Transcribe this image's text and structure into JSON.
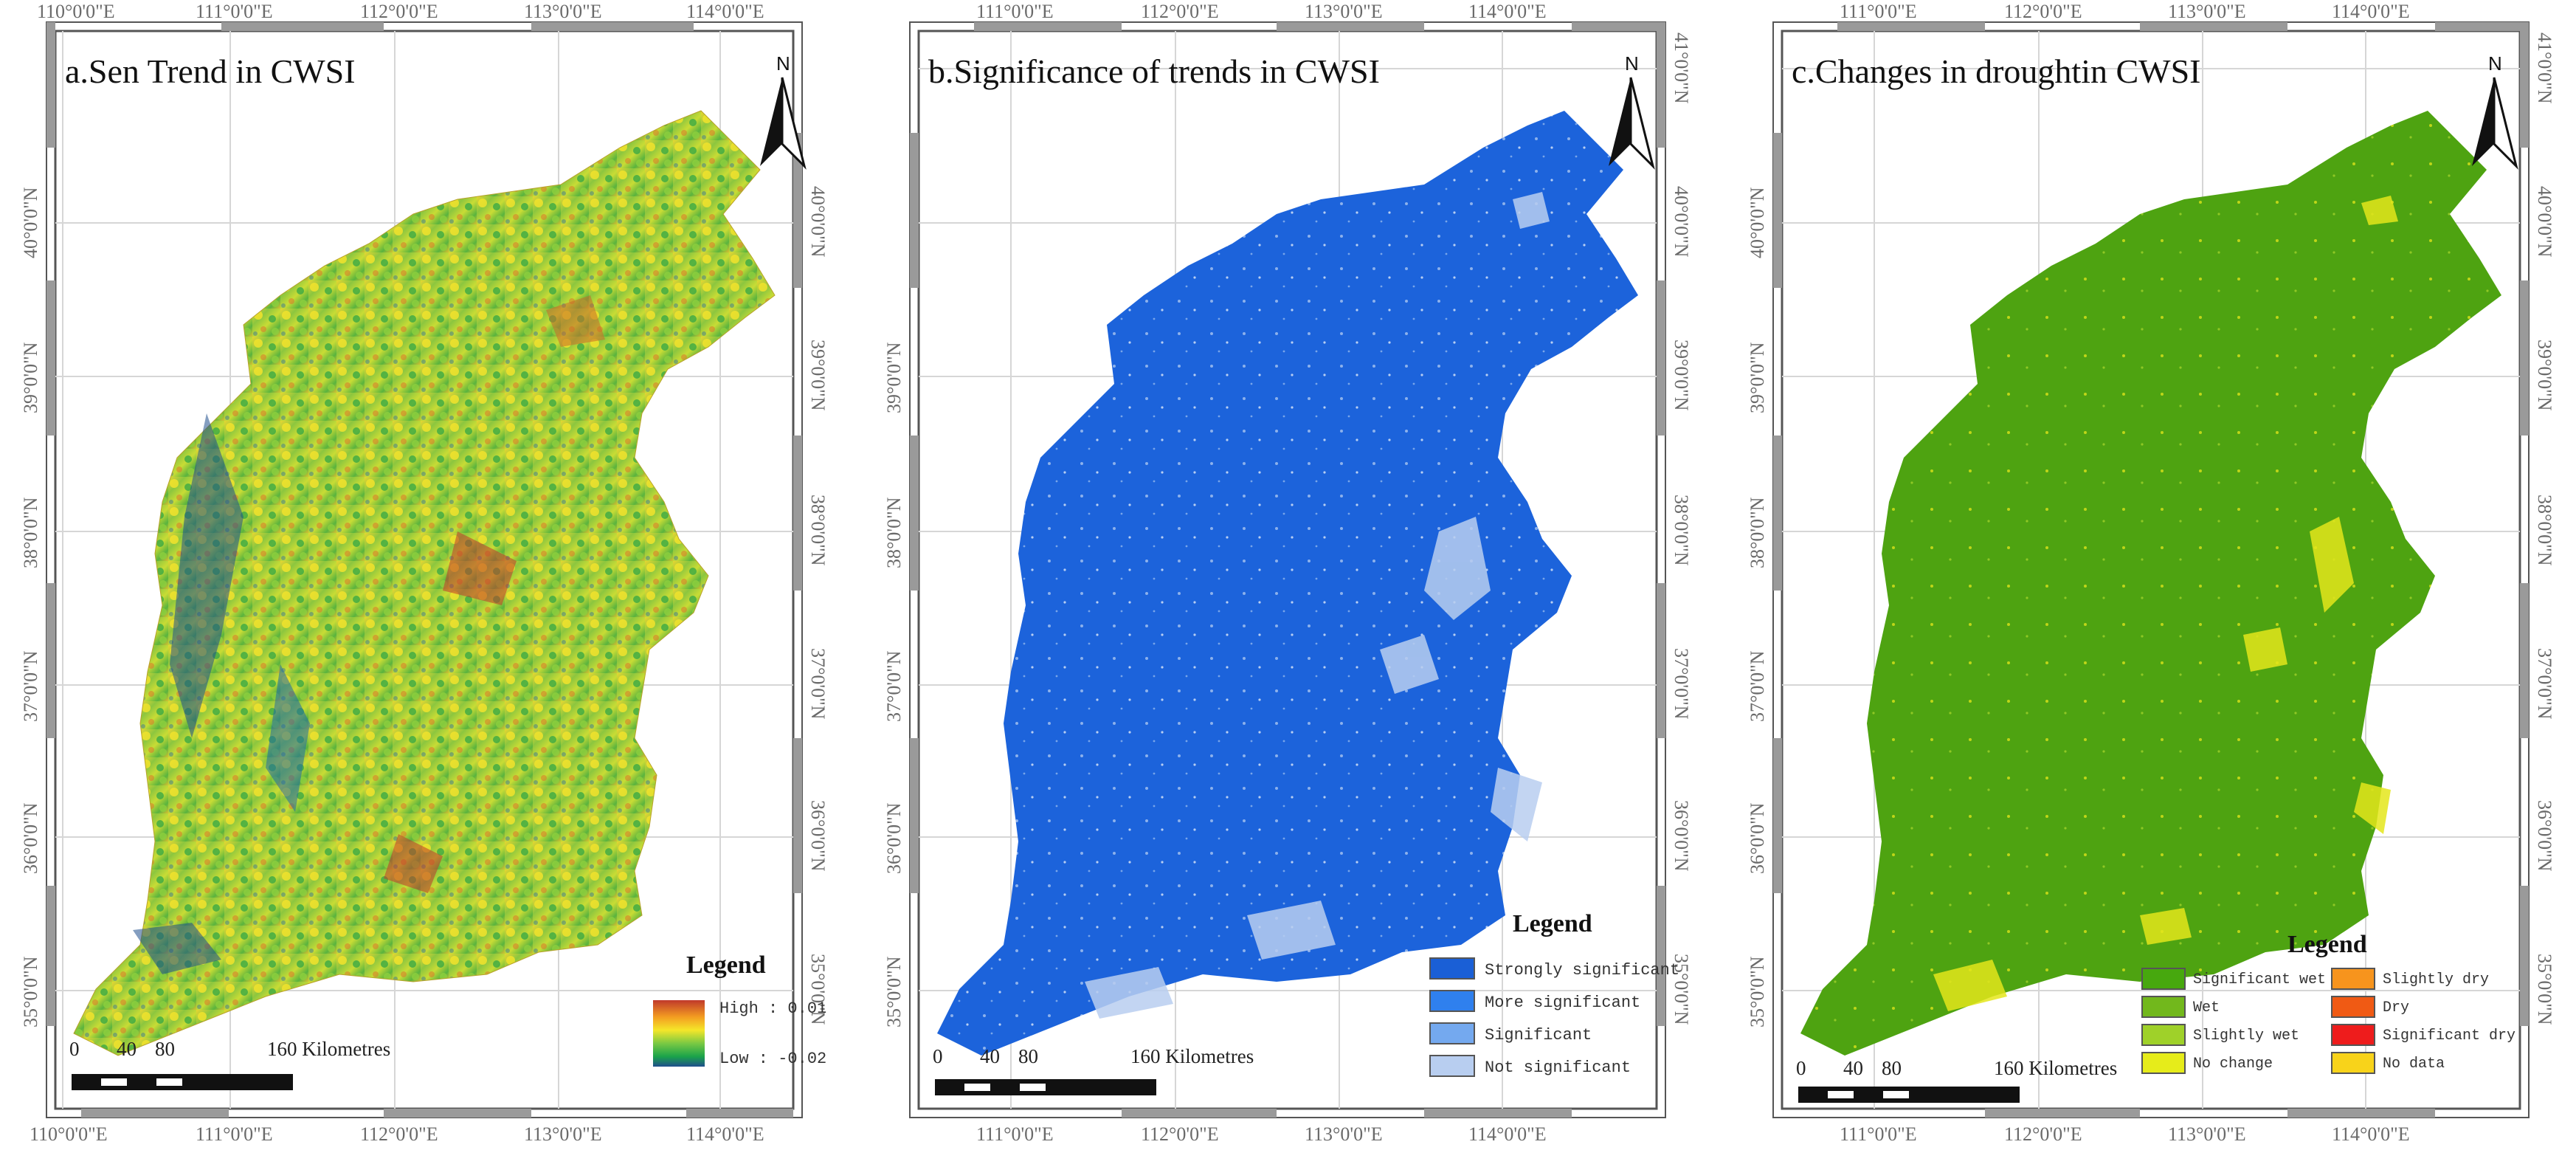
{
  "panels": [
    {
      "id": "a",
      "title": "a.Sen Trend in CWSI",
      "top_labels": [
        "110°0'0\"E",
        "111°0'0\"E",
        "112°0'0\"E",
        "113°0'0\"E",
        "114°0'0\"E"
      ],
      "bottom_labels": [
        "110°0'0\"E",
        "111°0'0\"E",
        "112°0'0\"E",
        "113°0'0\"E",
        "114°0'0\"E"
      ],
      "left_labels": [
        "40°0'0\"N",
        "39°0'0\"N",
        "38°0'0\"N",
        "37°0'0\"N",
        "36°0'0\"N",
        "35°0'0\"N"
      ],
      "right_labels": [
        "40°0'0\"N",
        "39°0'0\"N",
        "38°0'0\"N",
        "37°0'0\"N",
        "36°0'0\"N",
        "35°0'0\"N"
      ],
      "legend": {
        "title": "Legend",
        "high": "High : 0.01",
        "low": "Low : -0.02"
      }
    },
    {
      "id": "b",
      "title": "b.Significance of trends in CWSI",
      "top_labels": [
        "111°0'0\"E",
        "112°0'0\"E",
        "113°0'0\"E",
        "114°0'0\"E"
      ],
      "bottom_labels": [
        "111°0'0\"E",
        "112°0'0\"E",
        "113°0'0\"E",
        "114°0'0\"E"
      ],
      "left_labels": [
        "39°0'0\"N",
        "38°0'0\"N",
        "37°0'0\"N",
        "36°0'0\"N",
        "35°0'0\"N"
      ],
      "right_labels": [
        "41°0'0\"N",
        "40°0'0\"N",
        "39°0'0\"N",
        "38°0'0\"N",
        "37°0'0\"N",
        "36°0'0\"N",
        "35°0'0\"N"
      ],
      "legend": {
        "title": "Legend",
        "items": [
          {
            "label": "Strongly significant",
            "color": "#1a5fd6"
          },
          {
            "label": "More significant",
            "color": "#2f80ee"
          },
          {
            "label": "Significant",
            "color": "#74a9ef"
          },
          {
            "label": "Not significant",
            "color": "#b8cef0"
          }
        ]
      }
    },
    {
      "id": "c",
      "title": "c.Changes in droughtin CWSI",
      "top_labels": [
        "111°0'0\"E",
        "112°0'0\"E",
        "113°0'0\"E",
        "114°0'0\"E"
      ],
      "bottom_labels": [
        "111°0'0\"E",
        "112°0'0\"E",
        "113°0'0\"E",
        "114°0'0\"E"
      ],
      "left_labels": [
        "40°0'0\"N",
        "39°0'0\"N",
        "38°0'0\"N",
        "37°0'0\"N",
        "36°0'0\"N",
        "35°0'0\"N"
      ],
      "right_labels": [
        "41°0'0\"N",
        "40°0'0\"N",
        "39°0'0\"N",
        "38°0'0\"N",
        "37°0'0\"N",
        "36°0'0\"N",
        "35°0'0\"N"
      ],
      "legend": {
        "title": "Legend",
        "items": [
          {
            "label": "Significant wet",
            "color": "#47a80e"
          },
          {
            "label": "Slightly dry",
            "color": "#f7941d"
          },
          {
            "label": "Wet",
            "color": "#72b81c"
          },
          {
            "label": "Dry",
            "color": "#f05a14"
          },
          {
            "label": "Slightly wet",
            "color": "#9fd129"
          },
          {
            "label": "Significant dry",
            "color": "#ee1c1c"
          },
          {
            "label": "No change",
            "color": "#e6ec1a"
          },
          {
            "label": "No data",
            "color": "#f8d31a"
          }
        ]
      }
    }
  ],
  "north_label": "N",
  "scale": {
    "ticks": [
      "0",
      "40",
      "80"
    ],
    "end": "160 Kilometres"
  },
  "colors": {
    "frame": "#9a9a9a",
    "grid": "#d6d6d6",
    "trend_ramp": [
      "#1f4f8c",
      "#1aa34a",
      "#7ac943",
      "#f5e629",
      "#f39c21",
      "#c0392b"
    ],
    "significance_base": "#1c63db",
    "drought_base": "#4ea311",
    "drought_spots": "#e4e61b"
  }
}
